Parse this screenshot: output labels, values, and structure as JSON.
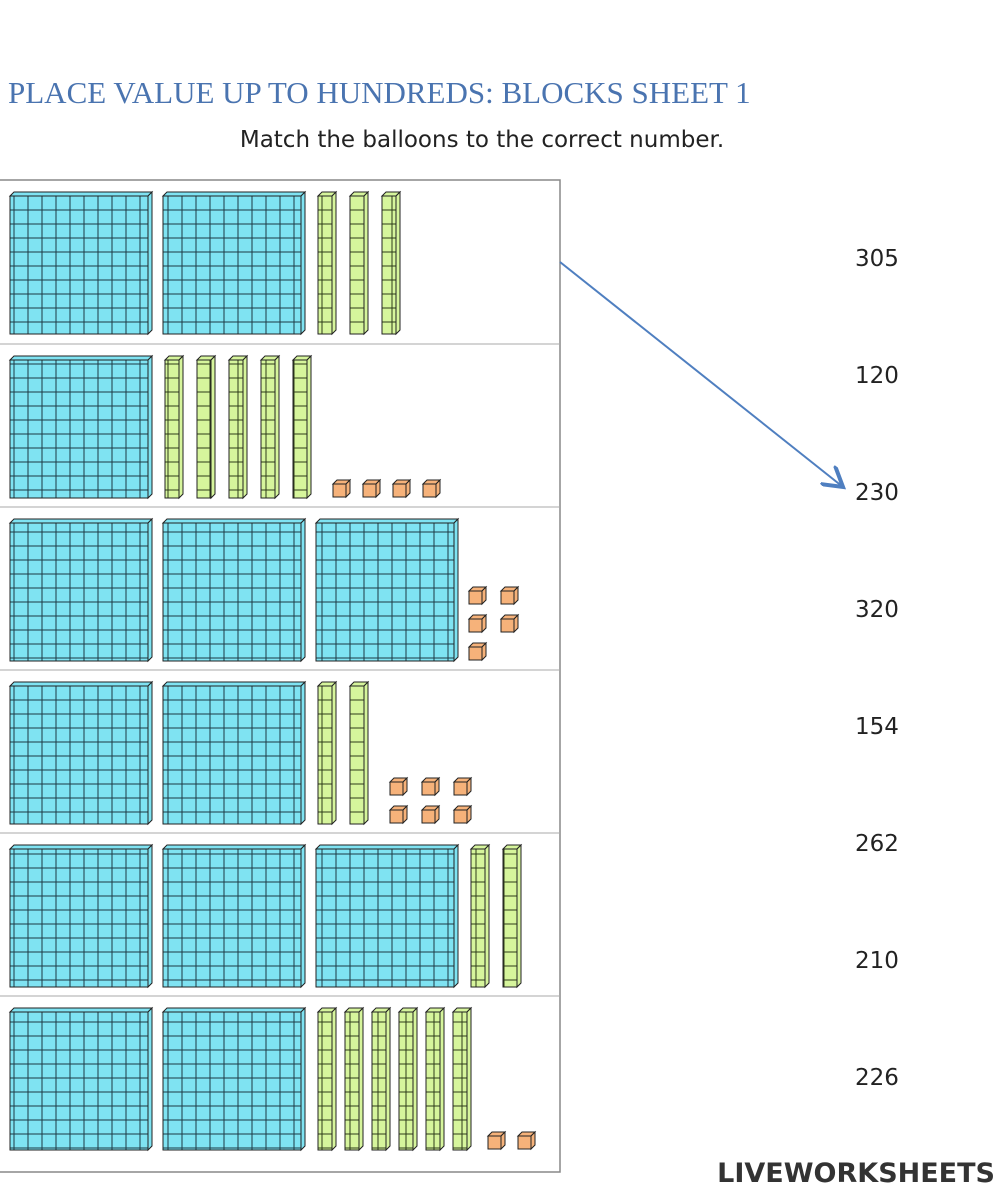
{
  "header": {
    "title": "PLACE VALUE UP TO HUNDREDS: BLOCKS SHEET 1",
    "subtitle": "Match the balloons to the correct number."
  },
  "rows": [
    {
      "hundreds": 2,
      "tens": 3,
      "ones": 0
    },
    {
      "hundreds": 1,
      "tens": 5,
      "ones": 4
    },
    {
      "hundreds": 3,
      "tens": 0,
      "ones": 5
    },
    {
      "hundreds": 2,
      "tens": 2,
      "ones": 6
    },
    {
      "hundreds": 3,
      "tens": 2,
      "ones": 0
    },
    {
      "hundreds": 2,
      "tens": 6,
      "ones": 2
    }
  ],
  "numbers": [
    "305",
    "120",
    "230",
    "320",
    "154",
    "262",
    "210",
    "226"
  ],
  "logo": "LIVEWORKSHEETS"
}
